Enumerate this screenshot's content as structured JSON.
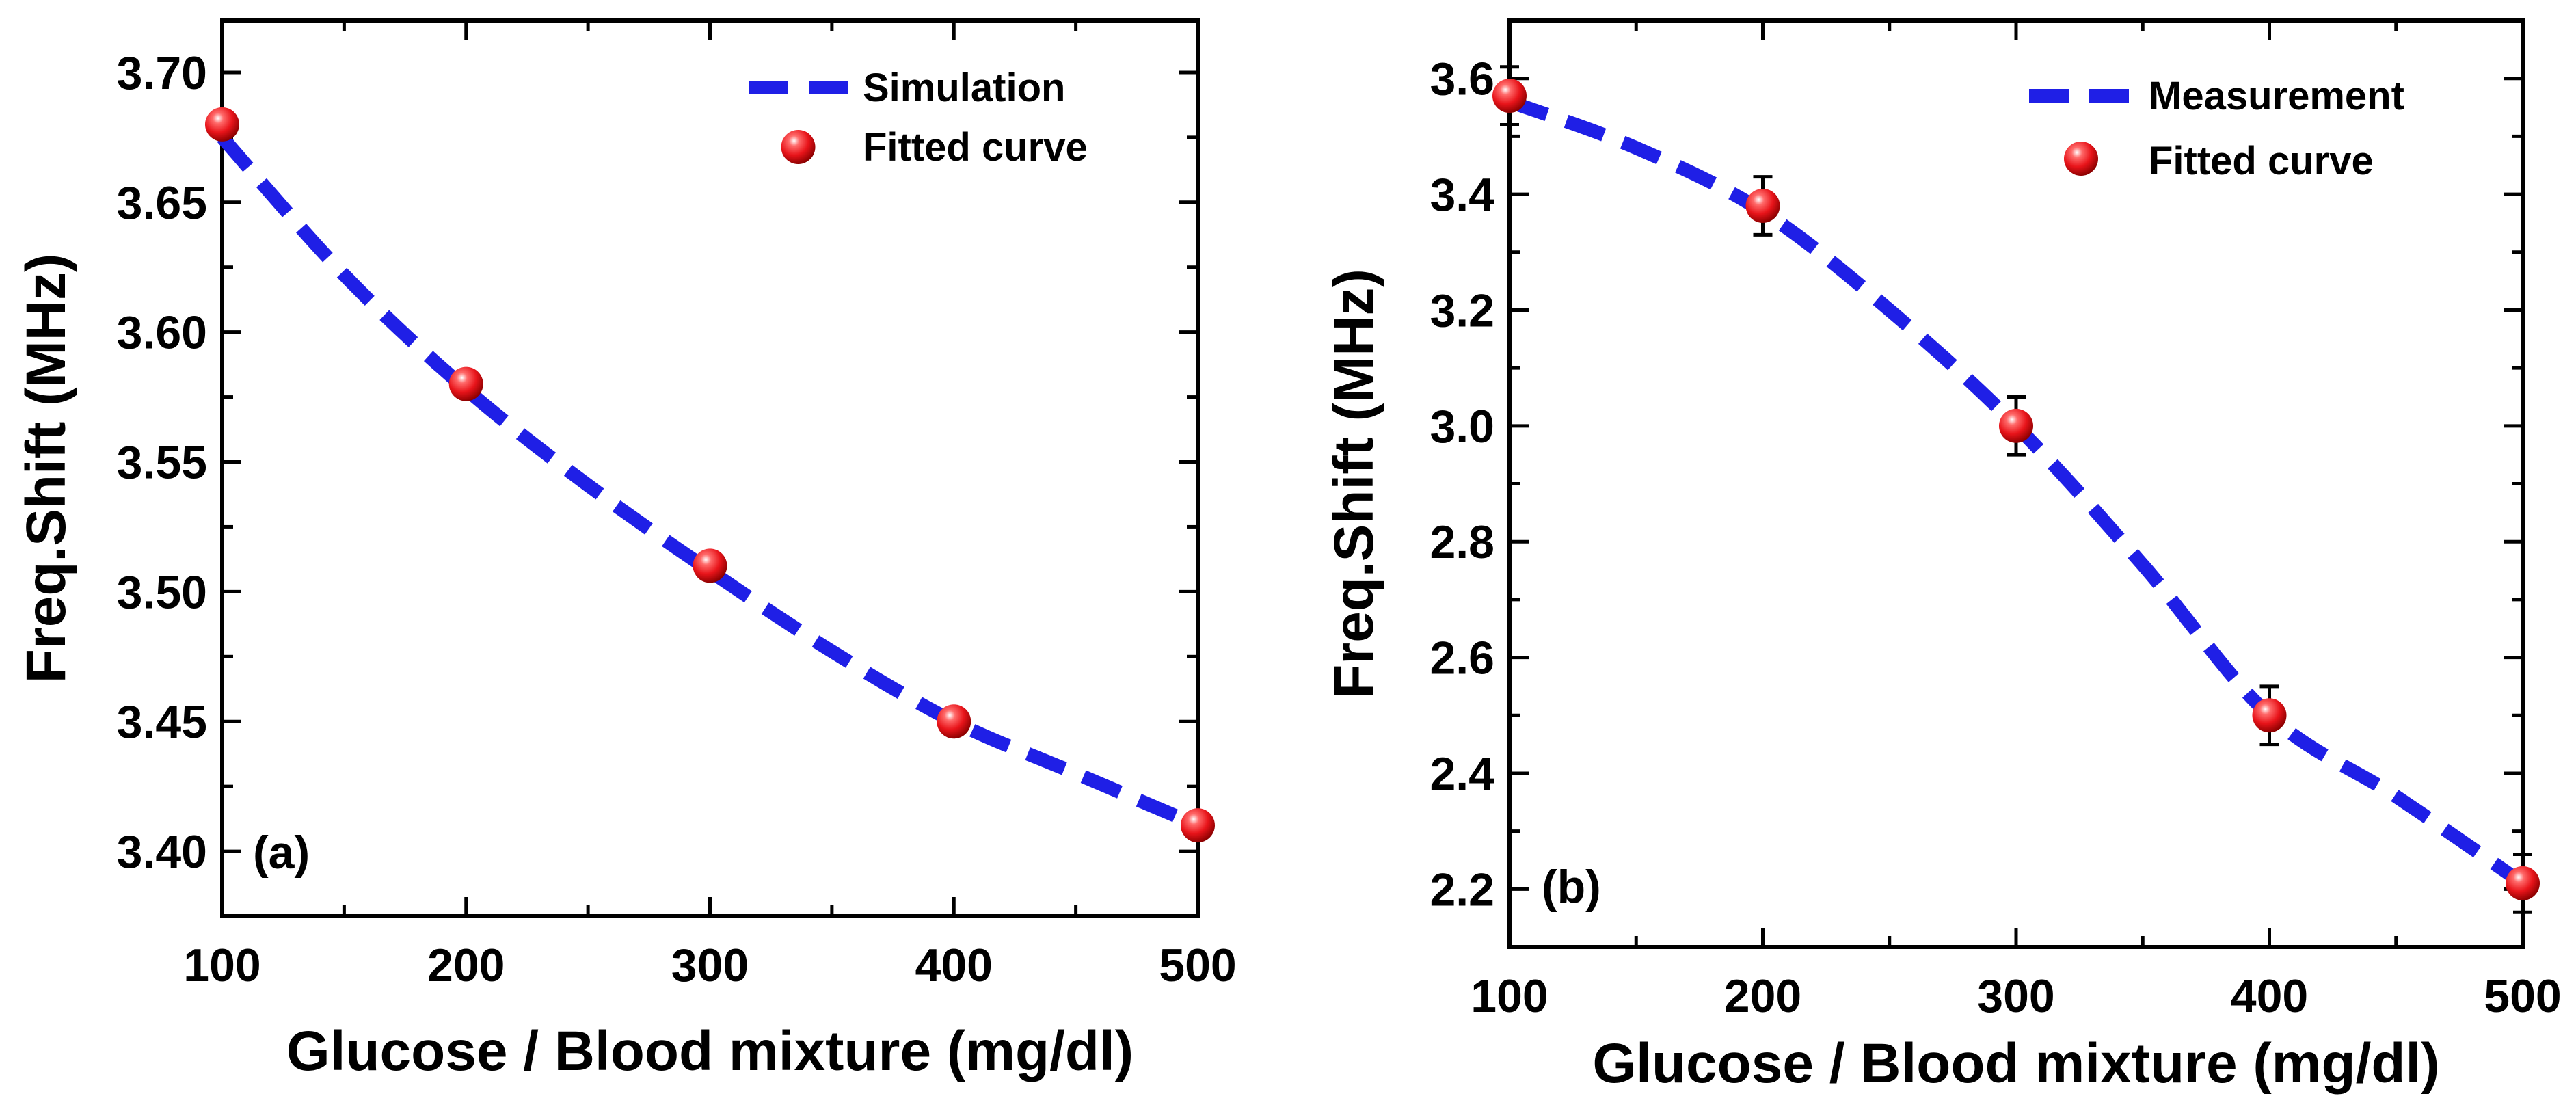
{
  "chart_data": [
    {
      "type": "line",
      "panel_label": "(a)",
      "xlabel": "Glucose / Blood mixture (mg/dl)",
      "ylabel": "Freq.Shift (MHz)",
      "xlim": [
        100,
        500
      ],
      "ylim": [
        3.375,
        3.72
      ],
      "xticks": [
        100,
        200,
        300,
        400,
        500
      ],
      "xtick_labels": [
        "100",
        "200",
        "300",
        "400",
        "500"
      ],
      "yticks": [
        3.4,
        3.45,
        3.5,
        3.55,
        3.6,
        3.65,
        3.7
      ],
      "ytick_labels": [
        "3.40",
        "3.45",
        "3.50",
        "3.55",
        "3.60",
        "3.65",
        "3.70"
      ],
      "legend_position": "top-right",
      "series": [
        {
          "name": "Simulation",
          "style": "dashed-line",
          "color": "#1f1fe6",
          "x": [
            100,
            150,
            200,
            250,
            300,
            350,
            400,
            450,
            500
          ],
          "y": [
            3.675,
            3.622,
            3.578,
            3.541,
            3.508,
            3.477,
            3.45,
            3.43,
            3.41
          ]
        },
        {
          "name": "Fitted curve",
          "style": "markers",
          "color": "#e8141a",
          "x": [
            100,
            200,
            300,
            400,
            500
          ],
          "y": [
            3.68,
            3.58,
            3.51,
            3.45,
            3.41
          ]
        }
      ]
    },
    {
      "type": "line",
      "panel_label": "(b)",
      "xlabel": "Glucose / Blood mixture (mg/dl)",
      "ylabel": "Freq.Shift (MHz)",
      "xlim": [
        100,
        500
      ],
      "ylim": [
        2.1,
        3.7
      ],
      "xticks": [
        100,
        200,
        300,
        400,
        500
      ],
      "xtick_labels": [
        "100",
        "200",
        "300",
        "400",
        "500"
      ],
      "yticks": [
        2.2,
        2.4,
        2.6,
        2.8,
        3.0,
        3.2,
        3.4,
        3.6
      ],
      "ytick_labels": [
        "2.2",
        "2.4",
        "2.6",
        "2.8",
        "3.0",
        "3.2",
        "3.4",
        "3.6"
      ],
      "legend_position": "top-right",
      "series": [
        {
          "name": "Measurement",
          "style": "dashed-line",
          "color": "#1f1fe6",
          "x": [
            100,
            150,
            200,
            250,
            300,
            350,
            400,
            450,
            500
          ],
          "y": [
            3.56,
            3.48,
            3.37,
            3.2,
            3.0,
            2.76,
            2.5,
            2.36,
            2.21
          ]
        },
        {
          "name": "Fitted curve",
          "style": "markers",
          "color": "#e8141a",
          "x": [
            100,
            200,
            300,
            400,
            500
          ],
          "y": [
            3.57,
            3.38,
            3.0,
            2.5,
            2.21
          ],
          "error": [
            0.05,
            0.05,
            0.05,
            0.05,
            0.05
          ]
        }
      ]
    }
  ]
}
